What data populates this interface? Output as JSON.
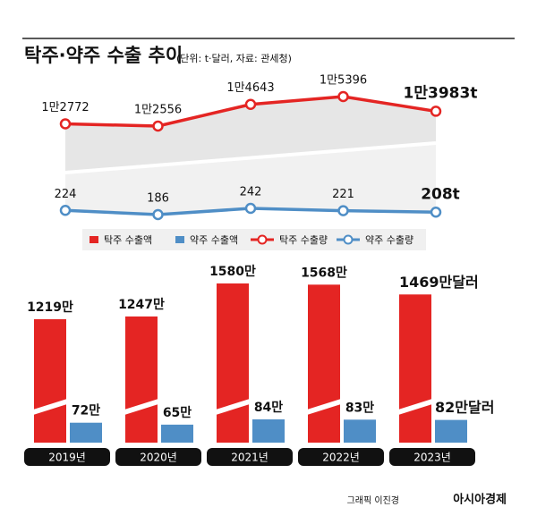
{
  "title": "탁주·약주 수출 추이",
  "subtitle": "(단위: t·달러, 자료: 관세청)",
  "credit": {
    "author": "그래픽 이진경",
    "source": "아시아경제"
  },
  "chart_data": {
    "type": "combo",
    "categories": [
      "2019년",
      "2020년",
      "2021년",
      "2022년",
      "2023년"
    ],
    "series": [
      {
        "name": "탁주 수출액",
        "type": "bar",
        "color": "#e42523",
        "values": [
          12190000,
          12470000,
          15800000,
          15680000,
          14690000
        ],
        "value_labels": [
          "1219만",
          "1247만",
          "1580만",
          "1568만",
          "1469만달러"
        ]
      },
      {
        "name": "약주 수출액",
        "type": "bar",
        "color": "#4f8ec6",
        "values": [
          720000,
          650000,
          840000,
          830000,
          820000
        ],
        "value_labels": [
          "72만",
          "65만",
          "84만",
          "83만",
          "82만달러"
        ]
      },
      {
        "name": "탁주 수출량",
        "type": "line",
        "color": "#e42523",
        "values": [
          12772,
          12556,
          14643,
          15396,
          13983
        ],
        "value_labels": [
          "1만2772",
          "1만2556",
          "1만4643",
          "1만5396",
          "1만3983t"
        ]
      },
      {
        "name": "약주 수출량",
        "type": "line",
        "color": "#4f8ec6",
        "values": [
          224,
          186,
          242,
          221,
          208
        ],
        "value_labels": [
          "224",
          "186",
          "242",
          "221",
          "208t"
        ]
      }
    ]
  }
}
